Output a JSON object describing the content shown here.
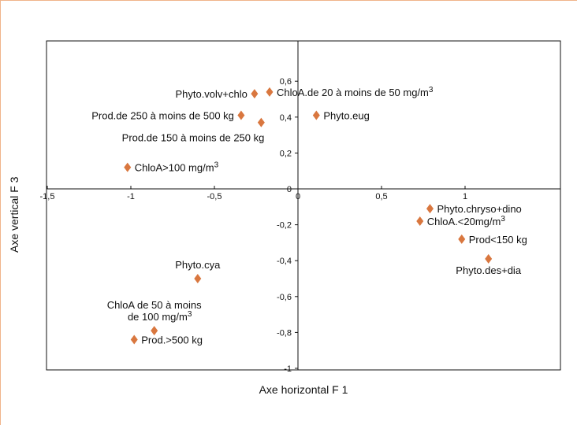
{
  "chart_data": {
    "type": "scatter",
    "title": "",
    "xlabel": "Axe horizontal F 1",
    "ylabel": "Axe vertical F 3",
    "xlim": [
      -1.5,
      1.5
    ],
    "ylim": [
      -1,
      0.7
    ],
    "xticks": [
      {
        "value": -1.5,
        "label": "-1,5"
      },
      {
        "value": -1,
        "label": "-1"
      },
      {
        "value": -0.5,
        "label": "-0,5"
      },
      {
        "value": 0,
        "label": "0"
      },
      {
        "value": 0.5,
        "label": "0,5"
      },
      {
        "value": 1,
        "label": "1"
      }
    ],
    "yticks": [
      {
        "value": 0.6,
        "label": "0,6"
      },
      {
        "value": 0.4,
        "label": "0,4"
      },
      {
        "value": 0.2,
        "label": "0,2"
      },
      {
        "value": 0,
        "label": "0"
      },
      {
        "value": -0.2,
        "label": "-0,2"
      },
      {
        "value": -0.4,
        "label": "-0,4"
      },
      {
        "value": -0.6,
        "label": "-0,6"
      },
      {
        "value": -0.8,
        "label": "-0,8"
      },
      {
        "value": -1,
        "label": "-1"
      }
    ],
    "marker_color": "#d9773f",
    "grid": false,
    "points": [
      {
        "label": "Phyto.volv+chlo",
        "x": -0.26,
        "y": 0.53,
        "label_side": "left"
      },
      {
        "label": "ChloA.de 20 à moins de 50 mg/m",
        "sup": "3",
        "x": -0.17,
        "y": 0.54,
        "label_side": "right"
      },
      {
        "label": "Prod.de 250 à moins de 500 kg",
        "x": -0.34,
        "y": 0.41,
        "label_side": "left"
      },
      {
        "label": "Prod.de 150 à moins de 250 kg",
        "x": -0.22,
        "y": 0.37,
        "label_side": "below-left"
      },
      {
        "label": "Phyto.eug",
        "x": 0.11,
        "y": 0.41,
        "label_side": "right"
      },
      {
        "label": "ChloA>100 mg/m",
        "sup": "3",
        "x": -1.02,
        "y": 0.12,
        "label_side": "right"
      },
      {
        "label": "Phyto.chryso+dino",
        "x": 0.79,
        "y": -0.11,
        "label_side": "right"
      },
      {
        "label": "ChloA.<20mg/m",
        "sup": "3",
        "x": 0.73,
        "y": -0.18,
        "label_side": "right"
      },
      {
        "label": "Prod<150 kg",
        "x": 0.98,
        "y": -0.28,
        "label_side": "right"
      },
      {
        "label": "Phyto.des+dia",
        "x": 1.14,
        "y": -0.39,
        "label_side": "below"
      },
      {
        "label": "Phyto.cya",
        "x": -0.6,
        "y": -0.5,
        "label_side": "above"
      },
      {
        "label": "ChloA de 50 à moins",
        "label2": "de 100 mg/m",
        "sup": "3",
        "x": -0.86,
        "y": -0.79,
        "label_side": "above"
      },
      {
        "label": "Prod.>500 kg",
        "x": -0.98,
        "y": -0.84,
        "label_side": "right"
      }
    ]
  }
}
